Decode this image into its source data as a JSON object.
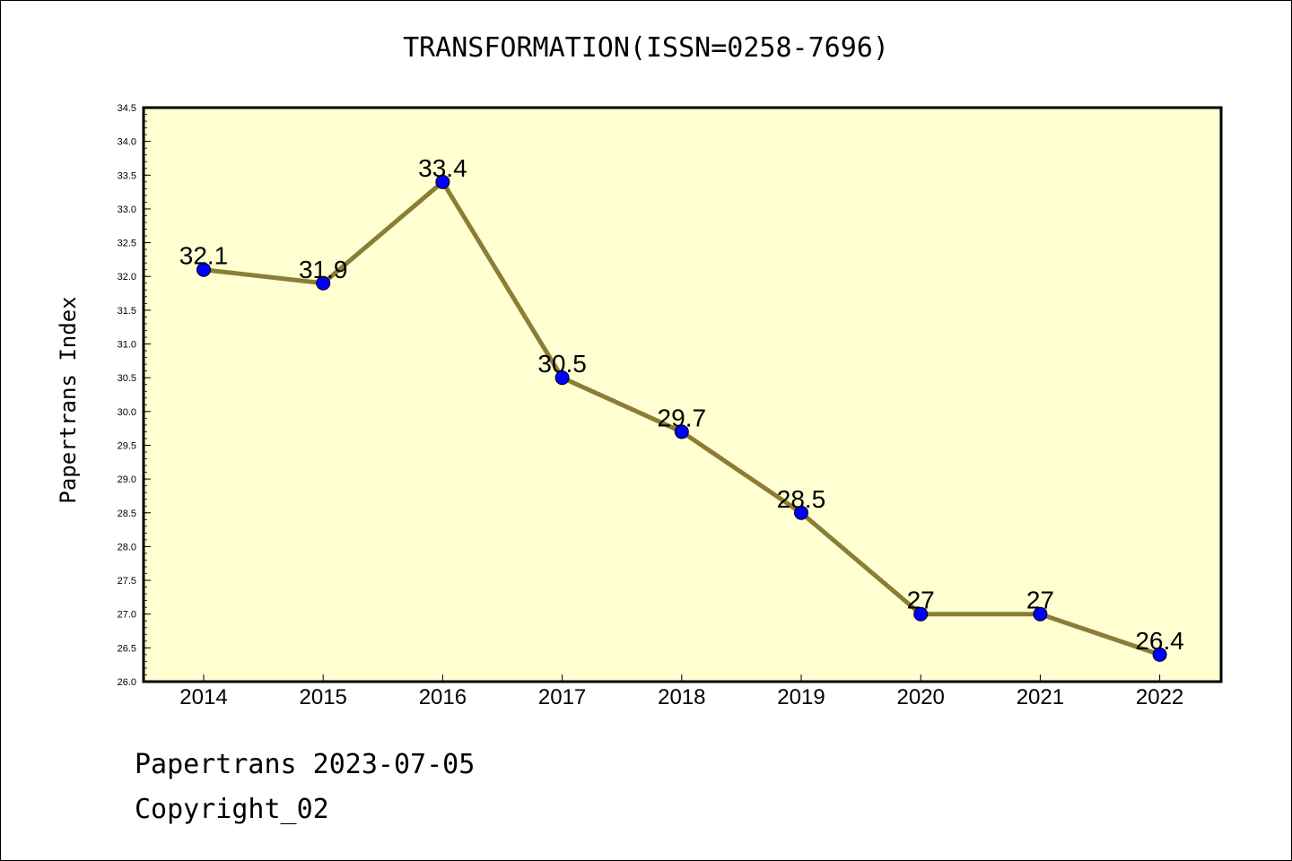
{
  "chart_data": {
    "type": "line",
    "title": "TRANSFORMATION(ISSN=0258-7696)",
    "ylabel": "Papertrans Index",
    "xlabel": "",
    "categories": [
      "2014",
      "2015",
      "2016",
      "2017",
      "2018",
      "2019",
      "2020",
      "2021",
      "2022"
    ],
    "values": [
      32.1,
      31.9,
      33.4,
      30.5,
      29.7,
      28.5,
      27,
      27,
      26.4
    ],
    "data_labels": [
      "32.1",
      "31.9",
      "33.4",
      "30.5",
      "29.7",
      "28.5",
      "27",
      "27",
      "26.4"
    ],
    "ylim": [
      26.0,
      34.5
    ],
    "yticks": [
      "26.0",
      "26.5",
      "27.0",
      "27.5",
      "28.0",
      "28.5",
      "29.0",
      "29.5",
      "30.0",
      "30.5",
      "31.0",
      "31.5",
      "32.0",
      "32.5",
      "33.0",
      "33.5",
      "34.0",
      "34.5"
    ],
    "grid": false,
    "colors": {
      "plot_background": "#ffffd2",
      "line": "#8b7d35",
      "marker": "#0000ff"
    }
  },
  "footer": {
    "line1": "Papertrans 2023-07-05",
    "line2": "Copyright_02"
  }
}
